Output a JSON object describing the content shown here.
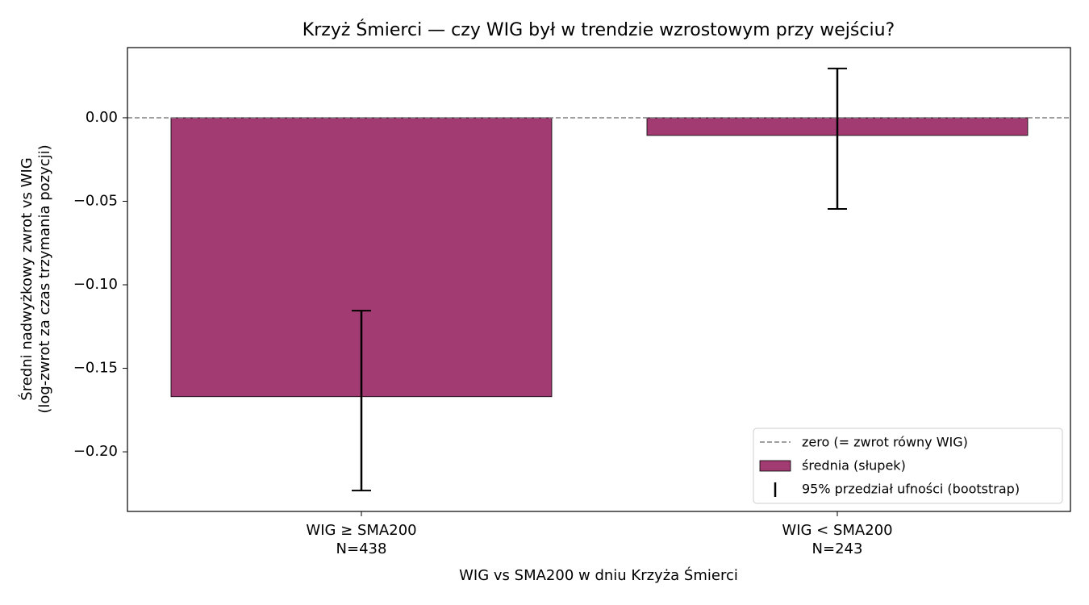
{
  "chart_data": {
    "type": "bar",
    "title": "Krzyż Śmierci — czy WIG był w trendzie wzrostowym przy wejściu?",
    "xlabel": "WIG vs SMA200 w dniu Krzyża Śmierci",
    "ylabel": [
      "Średni nadwyżkowy zwrot vs WIG",
      "(log-zwrot za czas trzymania pozycji)"
    ],
    "categories": [
      [
        "WIG ≥ SMA200",
        "N=438"
      ],
      [
        "WIG < SMA200",
        "N=243"
      ]
    ],
    "series": [
      {
        "name": "średnia (słupek)",
        "color": "#a23b72",
        "values": [
          -0.167,
          -0.0106
        ],
        "ci_low": [
          -0.2232,
          -0.0546
        ],
        "ci_high": [
          -0.1155,
          0.0295
        ]
      }
    ],
    "error_bar_label": "95% przedział ufności (bootstrap)",
    "reference_line": {
      "value": 0,
      "label": "zero (= zwrot równy WIG)"
    },
    "ylim": [
      -0.2357,
      0.042
    ],
    "yticks": [
      {
        "value": 0,
        "label": "0.00"
      },
      {
        "value": -0.05,
        "label": "−0.05"
      },
      {
        "value": -0.1,
        "label": "−0.10"
      },
      {
        "value": -0.15,
        "label": "−0.15"
      },
      {
        "value": -0.2,
        "label": "−0.20"
      }
    ],
    "legend": "lower right"
  }
}
